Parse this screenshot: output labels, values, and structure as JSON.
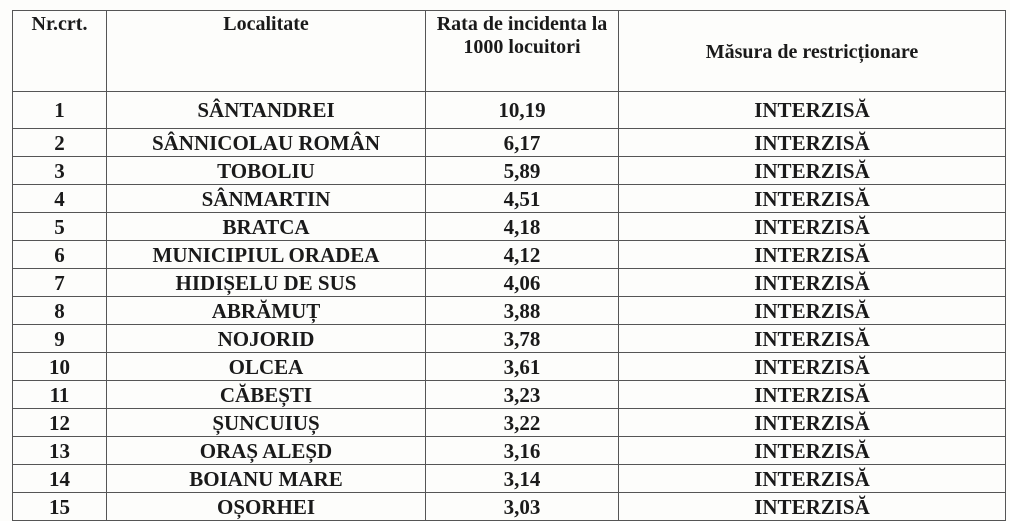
{
  "headers": {
    "nr": "Nr.crt.",
    "localitate": "Localitate",
    "rata": "Rata de incidenta la 1000 locuitori",
    "masura": "Măsura de restricționare"
  },
  "rows": [
    {
      "nr": "1",
      "localitate": "SÂNTANDREI",
      "rata": "10,19",
      "masura": "INTERZISĂ"
    },
    {
      "nr": "2",
      "localitate": "SÂNNICOLAU ROMÂN",
      "rata": "6,17",
      "masura": "INTERZISĂ"
    },
    {
      "nr": "3",
      "localitate": "TOBOLIU",
      "rata": "5,89",
      "masura": "INTERZISĂ"
    },
    {
      "nr": "4",
      "localitate": "SÂNMARTIN",
      "rata": "4,51",
      "masura": "INTERZISĂ"
    },
    {
      "nr": "5",
      "localitate": "BRATCA",
      "rata": "4,18",
      "masura": "INTERZISĂ"
    },
    {
      "nr": "6",
      "localitate": "MUNICIPIUL ORADEA",
      "rata": "4,12",
      "masura": "INTERZISĂ"
    },
    {
      "nr": "7",
      "localitate": "HIDIȘELU DE SUS",
      "rata": "4,06",
      "masura": "INTERZISĂ"
    },
    {
      "nr": "8",
      "localitate": "ABRĂMUȚ",
      "rata": "3,88",
      "masura": "INTERZISĂ"
    },
    {
      "nr": "9",
      "localitate": "NOJORID",
      "rata": "3,78",
      "masura": "INTERZISĂ"
    },
    {
      "nr": "10",
      "localitate": "OLCEA",
      "rata": "3,61",
      "masura": "INTERZISĂ"
    },
    {
      "nr": "11",
      "localitate": "CĂBEȘTI",
      "rata": "3,23",
      "masura": "INTERZISĂ"
    },
    {
      "nr": "12",
      "localitate": "ȘUNCUIUȘ",
      "rata": "3,22",
      "masura": "INTERZISĂ"
    },
    {
      "nr": "13",
      "localitate": "ORAȘ ALEȘD",
      "rata": "3,16",
      "masura": "INTERZISĂ"
    },
    {
      "nr": "14",
      "localitate": "BOIANU MARE",
      "rata": "3,14",
      "masura": "INTERZISĂ"
    },
    {
      "nr": "15",
      "localitate": "OȘORHEI",
      "rata": "3,03",
      "masura": "INTERZISĂ"
    }
  ]
}
